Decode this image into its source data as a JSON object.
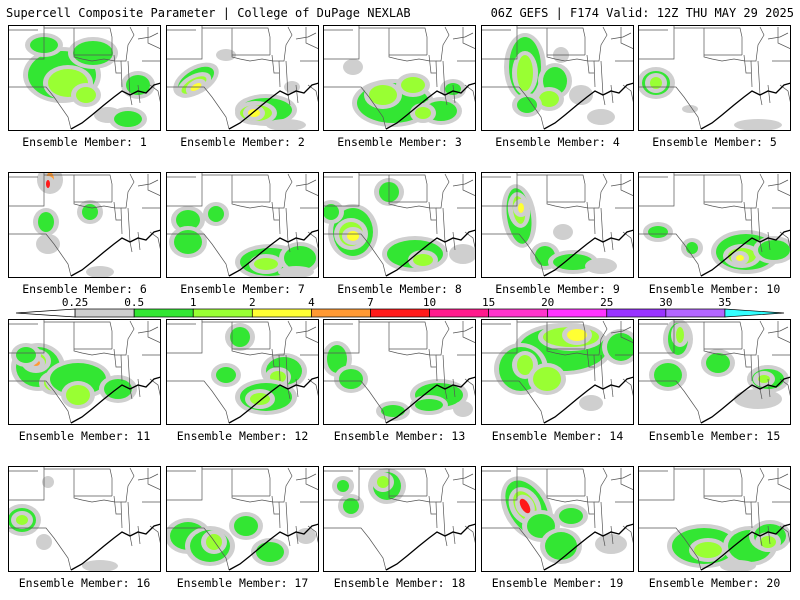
{
  "header": {
    "title_left": "Supercell Composite Parameter | College of DuPage NEXLAB",
    "title_right": "06Z GEFS | F174 Valid: 12Z THU MAY 29 2025"
  },
  "colorbar": {
    "levels": [
      "0.25",
      "0.5",
      "1",
      "2",
      "4",
      "7",
      "10",
      "15",
      "20",
      "25",
      "30",
      "35"
    ],
    "colors": [
      "#cfcfcf",
      "#33e633",
      "#99ff33",
      "#ffff33",
      "#ff9933",
      "#ff1a1a",
      "#ff1a8c",
      "#ff33cc",
      "#ff33ff",
      "#9933ff",
      "#b366ff",
      "#33ffff"
    ]
  },
  "panels": [
    {
      "label": "Ensemble Member: 1"
    },
    {
      "label": "Ensemble Member: 2"
    },
    {
      "label": "Ensemble Member: 3"
    },
    {
      "label": "Ensemble Member: 4"
    },
    {
      "label": "Ensemble Member: 5"
    },
    {
      "label": "Ensemble Member: 6"
    },
    {
      "label": "Ensemble Member: 7"
    },
    {
      "label": "Ensemble Member: 8"
    },
    {
      "label": "Ensemble Member: 9"
    },
    {
      "label": "Ensemble Member: 10"
    },
    {
      "label": "Ensemble Member: 11"
    },
    {
      "label": "Ensemble Member: 12"
    },
    {
      "label": "Ensemble Member: 13"
    },
    {
      "label": "Ensemble Member: 14"
    },
    {
      "label": "Ensemble Member: 15"
    },
    {
      "label": "Ensemble Member: 16"
    },
    {
      "label": "Ensemble Member: 17"
    },
    {
      "label": "Ensemble Member: 18"
    },
    {
      "label": "Ensemble Member: 19"
    },
    {
      "label": "Ensemble Member: 20"
    }
  ]
}
